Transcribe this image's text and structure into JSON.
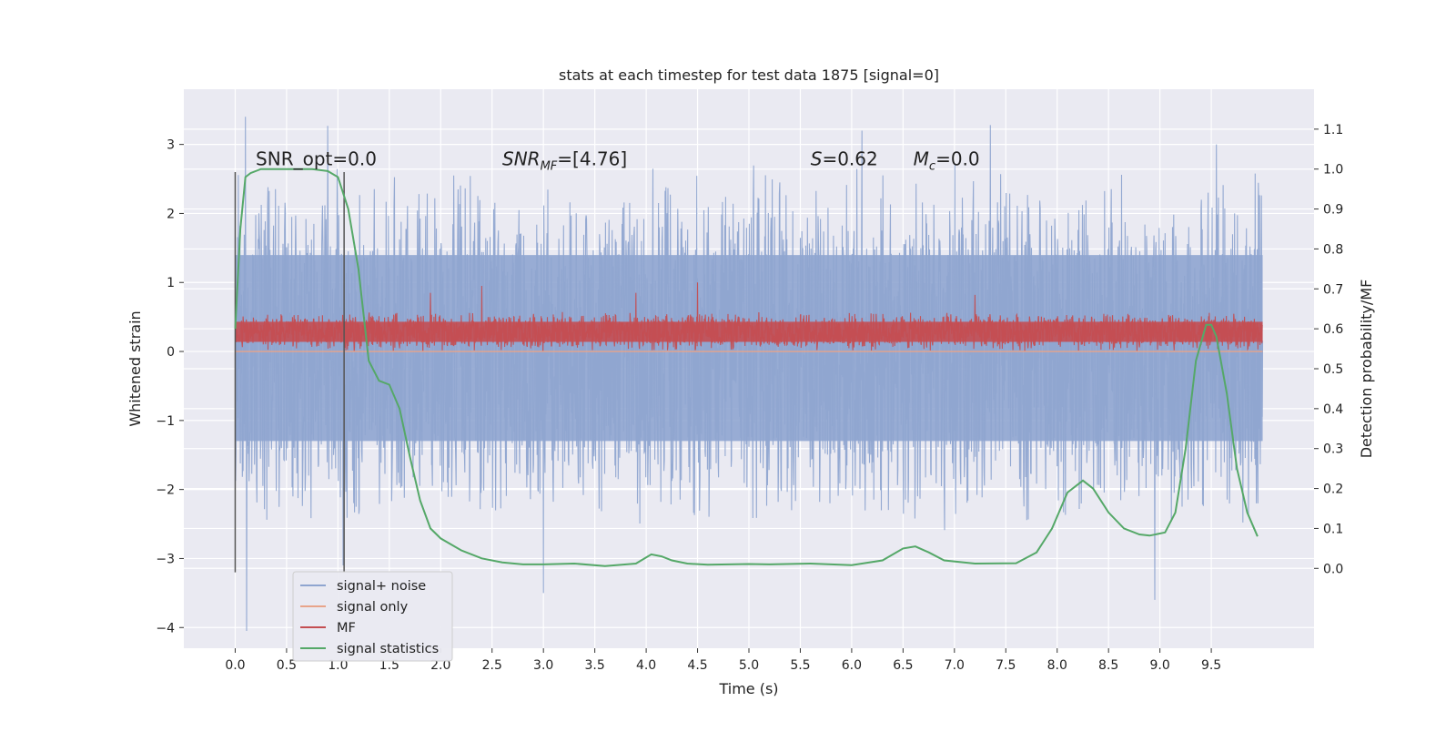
{
  "figure": {
    "title": "stats at each timestep for test data 1875 [signal=0]"
  },
  "chart_data": {
    "type": "line",
    "title": "stats at each timestep for test data 1875 [signal=0]",
    "xlabel": "Time (s)",
    "ylabel": "Whitened strain",
    "y2label": "Detection probability/MF",
    "xlim": [
      -0.5,
      10.5
    ],
    "ylim": [
      -4.3,
      3.8
    ],
    "y2lim": [
      -0.2,
      1.2
    ],
    "x_ticks": [
      "0.0",
      "0.5",
      "1.0",
      "1.5",
      "2.0",
      "2.5",
      "3.0",
      "3.5",
      "4.0",
      "4.5",
      "5.0",
      "5.5",
      "6.0",
      "6.5",
      "7.0",
      "7.5",
      "8.0",
      "8.5",
      "9.0",
      "9.5"
    ],
    "y_ticks": [
      "3",
      "2",
      "1",
      "0",
      "−1",
      "−2",
      "−3",
      "−4"
    ],
    "y2_ticks": [
      "1.1",
      "1.0",
      "0.9",
      "0.8",
      "0.7",
      "0.6",
      "0.5",
      "0.4",
      "0.3",
      "0.2",
      "0.1",
      "0.0"
    ],
    "grid": true,
    "legend_position": "lower-left",
    "annotations": [
      {
        "text": "SNR_opt=0.0",
        "x": 0.2,
        "y": 2.7,
        "axis": "left"
      },
      {
        "label": "SNR",
        "sub": "MF",
        "value": "=[4.76]",
        "x": 2.6,
        "y": 2.7,
        "axis": "left"
      },
      {
        "label": "S",
        "sub": "",
        "value": "=0.62",
        "x": 5.6,
        "y": 2.7,
        "axis": "left"
      },
      {
        "label": "M",
        "sub": "c",
        "value": "=0.0",
        "x": 6.6,
        "y": 2.7,
        "axis": "left"
      }
    ],
    "vlines": [
      {
        "x": 0.0,
        "ymin": -3.2,
        "ymax": 2.6
      },
      {
        "x": 1.06,
        "ymin": -3.2,
        "ymax": 2.6
      }
    ],
    "series": [
      {
        "name": "signal+ noise",
        "color": "#8fa5d0",
        "axis": "left",
        "style": "noise-band",
        "x_range": [
          0.0,
          10.0
        ],
        "envelope": [
          {
            "x": 0.0,
            "upper": 2.5,
            "lower": -2.4
          },
          {
            "x": 10.0,
            "upper": 2.5,
            "lower": -2.4
          }
        ],
        "peaks": [
          {
            "x": 0.1,
            "y": 3.4
          },
          {
            "x": 0.11,
            "y": -4.05
          },
          {
            "x": 0.9,
            "y": 3.27
          },
          {
            "x": 3.0,
            "y": -3.5
          },
          {
            "x": 6.1,
            "y": 3.2
          },
          {
            "x": 7.35,
            "y": 3.28
          },
          {
            "x": 8.95,
            "y": -3.6
          },
          {
            "x": 9.55,
            "y": 3.0
          },
          {
            "x": 1.05,
            "y": -3.1
          }
        ]
      },
      {
        "name": "signal only",
        "color": "#e8a48a",
        "axis": "left",
        "style": "line",
        "x": [
          0.0,
          10.0
        ],
        "y": [
          0.0,
          0.0
        ]
      },
      {
        "name": "MF",
        "color": "#c44e52",
        "axis": "left",
        "style": "noise-band",
        "x_range": [
          0.0,
          10.0
        ],
        "envelope": [
          {
            "x": 0.0,
            "upper": 0.55,
            "lower": 0.02
          },
          {
            "x": 10.0,
            "upper": 0.55,
            "lower": 0.02
          }
        ],
        "peaks": [
          {
            "x": 1.9,
            "y": 0.85
          },
          {
            "x": 2.4,
            "y": 0.95
          },
          {
            "x": 3.9,
            "y": 0.85
          },
          {
            "x": 4.5,
            "y": 1.0
          },
          {
            "x": 7.2,
            "y": 0.82
          }
        ]
      },
      {
        "name": "signal statistics",
        "color": "#55a868",
        "axis": "right",
        "style": "line",
        "x": [
          0.0,
          0.05,
          0.1,
          0.15,
          0.25,
          0.5,
          0.75,
          0.9,
          1.0,
          1.1,
          1.2,
          1.3,
          1.4,
          1.5,
          1.6,
          1.7,
          1.8,
          1.9,
          2.0,
          2.2,
          2.4,
          2.6,
          2.8,
          3.0,
          3.3,
          3.6,
          3.9,
          4.05,
          4.15,
          4.25,
          4.4,
          4.6,
          5.0,
          5.2,
          5.6,
          6.0,
          6.3,
          6.5,
          6.62,
          6.75,
          6.9,
          7.2,
          7.6,
          7.8,
          7.95,
          8.1,
          8.25,
          8.35,
          8.5,
          8.65,
          8.8,
          8.9,
          9.05,
          9.15,
          9.25,
          9.35,
          9.45,
          9.5,
          9.55,
          9.65,
          9.75,
          9.85,
          9.95
        ],
        "y": [
          0.6,
          0.85,
          0.98,
          0.99,
          1.0,
          1.0,
          1.0,
          0.995,
          0.98,
          0.9,
          0.75,
          0.52,
          0.47,
          0.46,
          0.4,
          0.28,
          0.17,
          0.1,
          0.075,
          0.045,
          0.025,
          0.015,
          0.01,
          0.01,
          0.012,
          0.006,
          0.012,
          0.035,
          0.03,
          0.02,
          0.012,
          0.009,
          0.011,
          0.01,
          0.012,
          0.008,
          0.02,
          0.05,
          0.055,
          0.04,
          0.02,
          0.012,
          0.013,
          0.04,
          0.1,
          0.19,
          0.22,
          0.2,
          0.14,
          0.1,
          0.085,
          0.082,
          0.09,
          0.14,
          0.3,
          0.52,
          0.61,
          0.61,
          0.58,
          0.44,
          0.25,
          0.14,
          0.08
        ]
      }
    ],
    "legend": [
      "signal+ noise",
      "signal only",
      "MF",
      "signal statistics"
    ]
  }
}
